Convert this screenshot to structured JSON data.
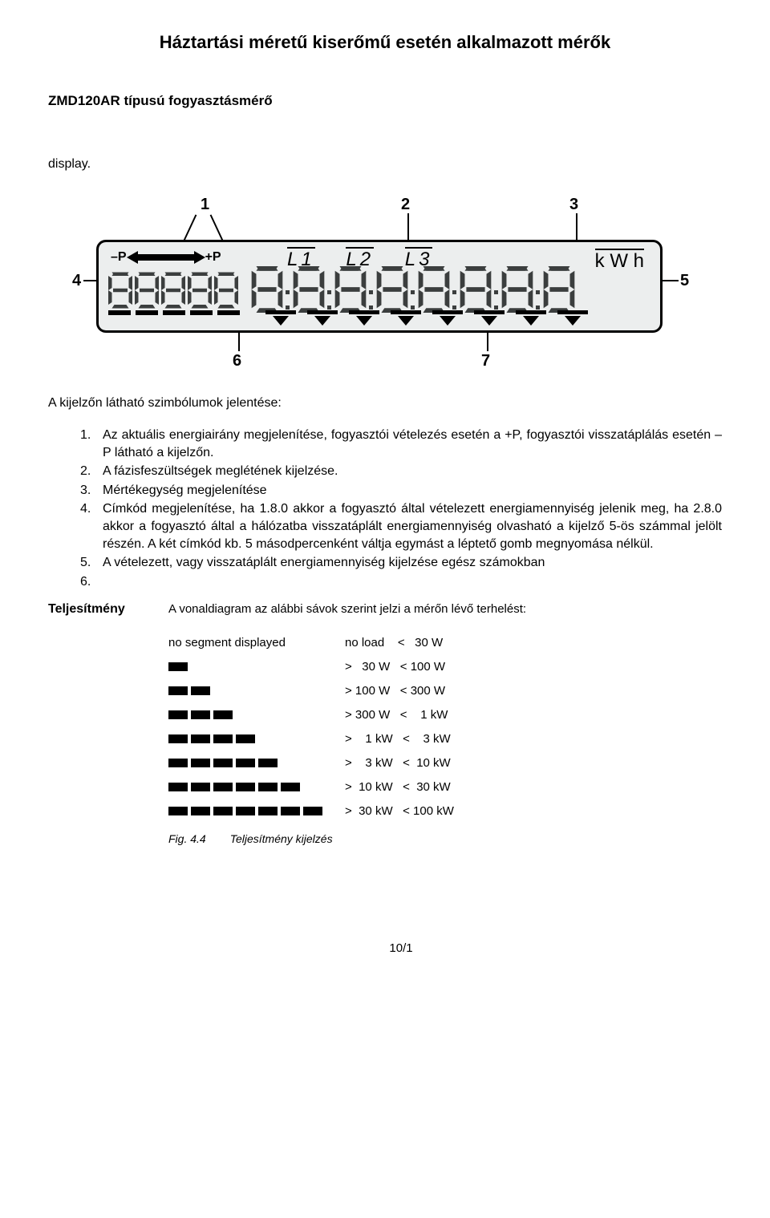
{
  "title": "Háztartási méretű kiserőmű esetén alkalmazott mérők",
  "subtitle": "ZMD120AR típusú fogyasztásmérő",
  "display_word": "display.",
  "lcd": {
    "minus_p": "–P",
    "plus_p": "+P",
    "l1": "L1",
    "l2": "L2",
    "l3": "L3",
    "kwh": "k W h",
    "callouts": {
      "c1": "1",
      "c2": "2",
      "c3": "3",
      "c4": "4",
      "c5": "5",
      "c6": "6",
      "c7": "7"
    }
  },
  "symbols_intro": "A kijelzőn látható szimbólumok jelentése:",
  "list": [
    {
      "n": "1.",
      "t": "Az aktuális energiairány megjelenítése, fogyasztói vételezés esetén a +P, fogyasztói visszatáplálás esetén –P látható a kijelzőn."
    },
    {
      "n": "2.",
      "t": "A fázisfeszültségek meglétének kijelzése."
    },
    {
      "n": "3.",
      "t": "Mértékegység megjelenítése"
    },
    {
      "n": "4.",
      "t": "Címkód megjelenítése, ha 1.8.0 akkor a fogyasztó által vételezett energiamennyiség jelenik meg, ha 2.8.0 akkor a fogyasztó által a hálózatba visszatáplált energiamennyiség olvasható a kijelző 5-ös számmal jelölt részén. A két címkód kb. 5 másodpercenként váltja egymást a léptető gomb megnyomása nélkül."
    },
    {
      "n": "5.",
      "t": "A vételezett, vagy visszatáplált energiamennyiség kijelzése egész számokban"
    },
    {
      "n": "6.",
      "t": ""
    }
  ],
  "power": {
    "label": "Teljesítmény",
    "desc": "A vonaldiagram az alábbi sávok szerint jelzi a mérőn lévő terhelést:",
    "rows": [
      {
        "bars": 0,
        "noseg": "no segment displayed",
        "text": "no load    <   30 W"
      },
      {
        "bars": 1,
        "text": ">   30 W   < 100 W"
      },
      {
        "bars": 2,
        "text": "> 100 W   < 300 W"
      },
      {
        "bars": 3,
        "text": "> 300 W   <    1 kW"
      },
      {
        "bars": 4,
        "text": ">    1 kW   <    3 kW"
      },
      {
        "bars": 5,
        "text": ">    3 kW   <  10 kW"
      },
      {
        "bars": 6,
        "text": ">  10 kW   <  30 kW"
      },
      {
        "bars": 7,
        "text": ">  30 kW   < 100 kW"
      }
    ],
    "fig_num": "Fig. 4.4",
    "fig_caption": "Teljesítmény kijelzés"
  },
  "page_number": "10/1"
}
